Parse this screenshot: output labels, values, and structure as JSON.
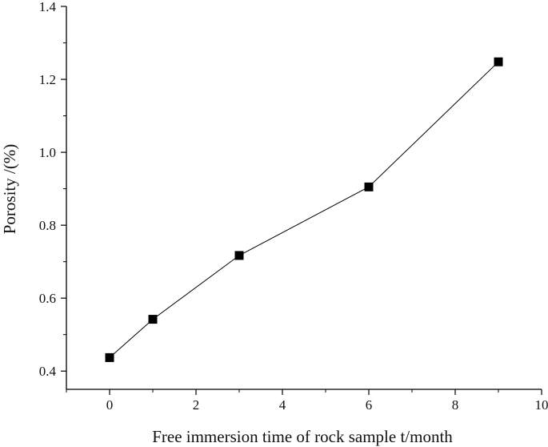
{
  "chart_data": {
    "type": "line",
    "xlabel": "Free immersion time of rock sample t/month",
    "ylabel": "Porosity /(%)",
    "xlim": [
      -1,
      10
    ],
    "ylim": [
      0.35,
      1.4
    ],
    "xticks": [
      0,
      2,
      4,
      6,
      8,
      10
    ],
    "xtick_labels": [
      "0",
      "2",
      "4",
      "6",
      "8",
      "10"
    ],
    "yticks": [
      0.4,
      0.6,
      0.8,
      1.0,
      1.2,
      1.4
    ],
    "ytick_labels": [
      "0.4",
      "0.6",
      "0.8",
      "1.0",
      "1.2",
      "1.4"
    ],
    "x_minor_step": 1,
    "y_minor_step": 0.1,
    "grid": false,
    "marker": "square",
    "series": [
      {
        "x": [
          0,
          1,
          3,
          6,
          9
        ],
        "y": [
          0.437,
          0.542,
          0.717,
          0.905,
          1.248
        ],
        "color": "#000000"
      }
    ]
  }
}
